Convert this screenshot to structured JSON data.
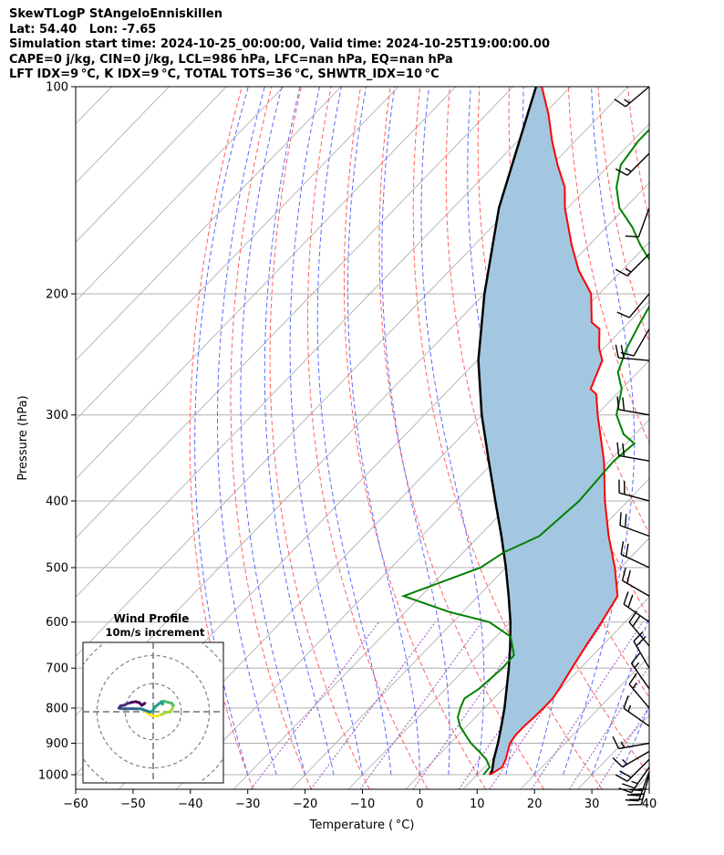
{
  "header": {
    "line1": "SkewTLogP StAngeloEnniskillen",
    "line2": "Lat: 54.40   Lon: -7.65",
    "line3": "Simulation start time: 2024-10-25_00:00:00, Valid time: 2024-10-25T19:00:00.00",
    "line4": "CAPE=0 j/kg, CIN=0 j/kg, LCL=986 hPa, LFC=nan hPa, EQ=nan hPa",
    "line5": "LFT IDX=9 °C, K IDX=9 °C, TOTAL TOTS=36 °C, SHWTR_IDX=10 °C"
  },
  "chart_data": {
    "type": "line",
    "title": "SkewTLogP StAngeloEnniskillen",
    "xlabel": "Temperature ( °C)",
    "ylabel": "Pressure (hPa)",
    "xlim": [
      -60,
      40
    ],
    "ylim": [
      1050,
      100
    ],
    "x_ticks": [
      -60,
      -50,
      -40,
      -30,
      -20,
      -10,
      0,
      10,
      20,
      30,
      40
    ],
    "y_ticks": [
      1000,
      900,
      800,
      700,
      600,
      500,
      400,
      300,
      200,
      100
    ],
    "series": [
      {
        "name": "Temperature",
        "color": "#ff0000",
        "points": [
          [
            1000,
            12.2
          ],
          [
            990,
            12.6
          ],
          [
            975,
            13.1
          ],
          [
            950,
            12.4
          ],
          [
            925,
            11.4
          ],
          [
            900,
            10.4
          ],
          [
            875,
            10.0
          ],
          [
            850,
            10.0
          ],
          [
            825,
            10.2
          ],
          [
            800,
            10.3
          ],
          [
            775,
            10.3
          ],
          [
            750,
            9.8
          ],
          [
            700,
            8.5
          ],
          [
            650,
            7.2
          ],
          [
            600,
            5.9
          ],
          [
            550,
            4.3
          ],
          [
            500,
            -1.0
          ],
          [
            450,
            -7.4
          ],
          [
            400,
            -14.0
          ],
          [
            350,
            -20.9
          ],
          [
            300,
            -29.8
          ],
          [
            280,
            -33.5
          ],
          [
            275,
            -35.4
          ],
          [
            250,
            -38.2
          ],
          [
            240,
            -40.8
          ],
          [
            225,
            -44.0
          ],
          [
            220,
            -46.5
          ],
          [
            200,
            -51.4
          ],
          [
            185,
            -57.5
          ],
          [
            170,
            -63.0
          ],
          [
            150,
            -70.5
          ],
          [
            140,
            -74.0
          ],
          [
            130,
            -79.0
          ],
          [
            120,
            -84.0
          ],
          [
            110,
            -89.0
          ],
          [
            100,
            -95.0
          ]
        ]
      },
      {
        "name": "Dewpoint",
        "color": "#008000",
        "points": [
          [
            1000,
            11.1
          ],
          [
            975,
            10.9
          ],
          [
            950,
            9.0
          ],
          [
            925,
            6.4
          ],
          [
            900,
            3.6
          ],
          [
            875,
            1.2
          ],
          [
            850,
            -1.2
          ],
          [
            825,
            -3.1
          ],
          [
            800,
            -4.2
          ],
          [
            775,
            -5.1
          ],
          [
            750,
            -4.2
          ],
          [
            700,
            -3.6
          ],
          [
            670,
            -3.8
          ],
          [
            630,
            -7.5
          ],
          [
            600,
            -13.7
          ],
          [
            580,
            -22.4
          ],
          [
            550,
            -33.0
          ],
          [
            500,
            -24.4
          ],
          [
            475,
            -22.9
          ],
          [
            450,
            -19.5
          ],
          [
            400,
            -18.5
          ],
          [
            350,
            -19.2
          ],
          [
            330,
            -18.6
          ],
          [
            320,
            -22.0
          ],
          [
            300,
            -26.5
          ],
          [
            275,
            -30.0
          ],
          [
            260,
            -33.5
          ],
          [
            240,
            -36.0
          ],
          [
            220,
            -38.0
          ],
          [
            200,
            -40.0
          ],
          [
            185,
            -44.0
          ],
          [
            170,
            -51.0
          ],
          [
            160,
            -55.5
          ],
          [
            150,
            -61.0
          ],
          [
            140,
            -65.0
          ],
          [
            130,
            -68.0
          ],
          [
            120,
            -69.0
          ],
          [
            110,
            -69.0
          ],
          [
            100,
            -69.0
          ]
        ]
      },
      {
        "name": "Parcel",
        "color": "#000000",
        "points": [
          [
            1000,
            12.2
          ],
          [
            986,
            11.9
          ],
          [
            950,
            10.3
          ],
          [
            900,
            8.3
          ],
          [
            850,
            6.0
          ],
          [
            800,
            3.5
          ],
          [
            750,
            0.6
          ],
          [
            700,
            -2.5
          ],
          [
            650,
            -6.0
          ],
          [
            600,
            -10.0
          ],
          [
            550,
            -14.7
          ],
          [
            500,
            -20.0
          ],
          [
            450,
            -26.1
          ],
          [
            400,
            -33.1
          ],
          [
            350,
            -41.0
          ],
          [
            300,
            -50.0
          ],
          [
            250,
            -59.8
          ],
          [
            200,
            -70.0
          ],
          [
            150,
            -82.0
          ],
          [
            100,
            -96.0
          ]
        ]
      }
    ],
    "wind_barbs": [
      {
        "p": 1000,
        "speed": 35,
        "dir": 195
      },
      {
        "p": 990,
        "speed": 30,
        "dir": 200
      },
      {
        "p": 975,
        "speed": 25,
        "dir": 215
      },
      {
        "p": 950,
        "speed": 20,
        "dir": 225
      },
      {
        "p": 925,
        "speed": 15,
        "dir": 240
      },
      {
        "p": 900,
        "speed": 15,
        "dir": 260
      },
      {
        "p": 850,
        "speed": 15,
        "dir": 305
      },
      {
        "p": 800,
        "speed": 15,
        "dir": 320
      },
      {
        "p": 750,
        "speed": 15,
        "dir": 325
      },
      {
        "p": 700,
        "speed": 20,
        "dir": 330
      },
      {
        "p": 650,
        "speed": 20,
        "dir": 320
      },
      {
        "p": 600,
        "speed": 20,
        "dir": 305
      },
      {
        "p": 550,
        "speed": 20,
        "dir": 300
      },
      {
        "p": 500,
        "speed": 20,
        "dir": 295
      },
      {
        "p": 450,
        "speed": 20,
        "dir": 290
      },
      {
        "p": 400,
        "speed": 20,
        "dir": 285
      },
      {
        "p": 350,
        "speed": 20,
        "dir": 280
      },
      {
        "p": 300,
        "speed": 20,
        "dir": 280
      },
      {
        "p": 250,
        "speed": 20,
        "dir": 275
      },
      {
        "p": 225,
        "speed": 10,
        "dir": 210
      },
      {
        "p": 200,
        "speed": 10,
        "dir": 220
      },
      {
        "p": 175,
        "speed": 15,
        "dir": 225
      },
      {
        "p": 150,
        "speed": 10,
        "dir": 200
      },
      {
        "p": 125,
        "speed": 15,
        "dir": 225
      },
      {
        "p": 100,
        "speed": 15,
        "dir": 230
      }
    ],
    "hodograph": {
      "title": "Wind Profile",
      "subtitle": "10m/s increment",
      "rings_ms": [
        10,
        20,
        30,
        40
      ],
      "range_ms": 25,
      "points": [
        [
          -3,
          0.2
        ],
        [
          -1.5,
          -0.8
        ],
        [
          -0.5,
          -1.4
        ],
        [
          1.2,
          -1.6
        ],
        [
          3.0,
          -1.0
        ],
        [
          4.6,
          -0.2
        ],
        [
          6.1,
          -0.1
        ],
        [
          6.8,
          1.1
        ],
        [
          7.2,
          2.3
        ],
        [
          6.6,
          3.0
        ],
        [
          5.1,
          3.4
        ],
        [
          3.8,
          3.8
        ],
        [
          3.3,
          2.7
        ],
        [
          3.0,
          3.6
        ],
        [
          0.8,
          1.8
        ],
        [
          -0.4,
          0.1
        ],
        [
          -1.1,
          -0.1
        ],
        [
          -3.7,
          0.8
        ],
        [
          -4.6,
          1.1
        ],
        [
          -5.8,
          1.0
        ],
        [
          -7.5,
          1.1
        ],
        [
          -9.8,
          1.0
        ],
        [
          -11.3,
          1.1
        ],
        [
          -12.2,
          1.3
        ],
        [
          -11.6,
          2.1
        ],
        [
          -10.4,
          2.3
        ],
        [
          -9.2,
          2.9
        ],
        [
          -7.8,
          3.3
        ],
        [
          -6.2,
          3.6
        ],
        [
          -4.9,
          3.2
        ],
        [
          -4.0,
          2.3
        ],
        [
          -3.0,
          3.0
        ]
      ]
    }
  }
}
